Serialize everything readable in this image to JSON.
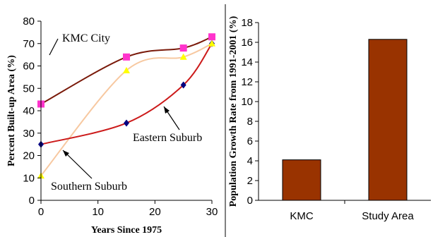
{
  "chart_data": [
    {
      "type": "line",
      "xlabel": "Years Since 1975",
      "ylabel": "Percent Built-up Area (%)",
      "xlim": [
        0,
        30
      ],
      "ylim": [
        0,
        80
      ],
      "xticks": [
        0,
        10,
        20,
        30
      ],
      "yticks": [
        0,
        10,
        20,
        30,
        40,
        50,
        60,
        70,
        80
      ],
      "grid": false,
      "series": [
        {
          "name": "KMC City",
          "color": "#7a1a0a",
          "marker": "square",
          "marker_color": "#ff33cc",
          "x": [
            0,
            15,
            25,
            30
          ],
          "y": [
            43,
            64,
            68,
            73
          ]
        },
        {
          "name": "Eastern Suburb",
          "color": "#cc1a1a",
          "marker": "diamond",
          "marker_color": "#000080",
          "x": [
            0,
            15,
            25,
            30
          ],
          "y": [
            25,
            34.5,
            51.5,
            70
          ]
        },
        {
          "name": "Southern Suburb",
          "color": "#f7c8a0",
          "marker": "triangle",
          "marker_color": "#ffff00",
          "x": [
            0,
            15,
            25,
            30
          ],
          "y": [
            11,
            58,
            64,
            70
          ]
        }
      ],
      "annotations": [
        "KMC City",
        "Eastern Suburb",
        "Southern Suburb"
      ]
    },
    {
      "type": "bar",
      "ylabel": "Population Growth Rate from 1991-2001 (%)",
      "categories": [
        "KMC",
        "Study Area"
      ],
      "values": [
        4.1,
        16.3
      ],
      "ylim": [
        0,
        18
      ],
      "yticks": [
        0,
        2,
        4,
        6,
        8,
        10,
        12,
        14,
        16,
        18
      ],
      "bar_color": "#993300",
      "grid": false
    }
  ]
}
